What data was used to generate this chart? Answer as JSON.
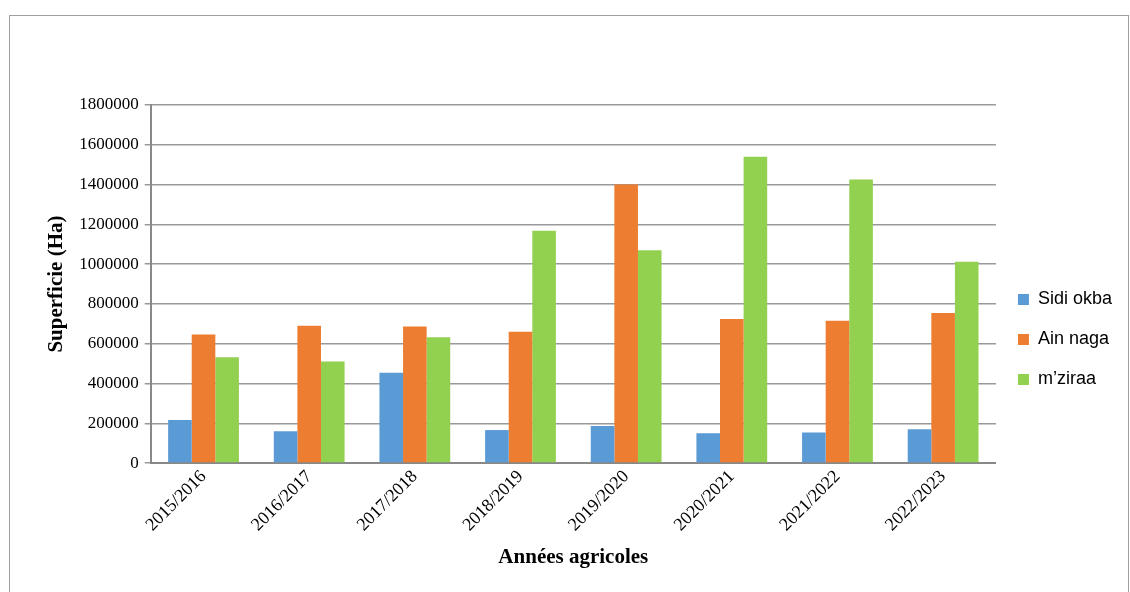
{
  "chart_data": {
    "type": "bar",
    "xlabel": "Années agricoles",
    "ylabel": "Superficie (Ha)",
    "categories": [
      "2015/2016",
      "2016/2017",
      "2017/2018",
      "2018/2019",
      "2019/2020",
      "2020/2021",
      "2021/2022",
      "2022/2023"
    ],
    "series": [
      {
        "name": "Sidi okba",
        "color": "#5b9bd5",
        "values": [
          216000,
          160000,
          454000,
          166000,
          186000,
          150000,
          154000,
          170000
        ]
      },
      {
        "name": "Ain naga",
        "color": "#ed7d31",
        "values": [
          646000,
          690000,
          686000,
          660000,
          1400000,
          724000,
          716000,
          754000
        ]
      },
      {
        "name": "m’ziraa",
        "color": "#92d050",
        "values": [
          532000,
          510000,
          632000,
          1168000,
          1070000,
          1540000,
          1426000,
          1012000
        ]
      }
    ],
    "ylim": [
      0,
      1800000
    ],
    "yticks": [
      0,
      200000,
      400000,
      600000,
      800000,
      1000000,
      1200000,
      1400000,
      1600000,
      1800000
    ],
    "grid": "y",
    "legend": "right"
  }
}
